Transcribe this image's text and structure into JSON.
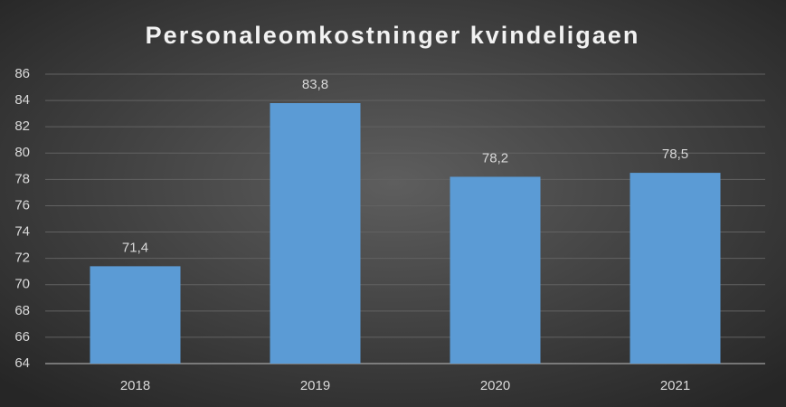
{
  "chart_data": {
    "type": "bar",
    "title": "Personaleomkostninger kvindeligaen",
    "categories": [
      "2018",
      "2019",
      "2020",
      "2021"
    ],
    "values": [
      71.4,
      83.8,
      78.2,
      78.5
    ],
    "value_labels": [
      "71,4",
      "83,8",
      "78,2",
      "78,5"
    ],
    "color": "#5b9bd5",
    "ylim": [
      64,
      86
    ],
    "yticks": [
      64,
      66,
      68,
      70,
      72,
      74,
      76,
      78,
      80,
      82,
      84,
      86
    ],
    "grid": true
  }
}
